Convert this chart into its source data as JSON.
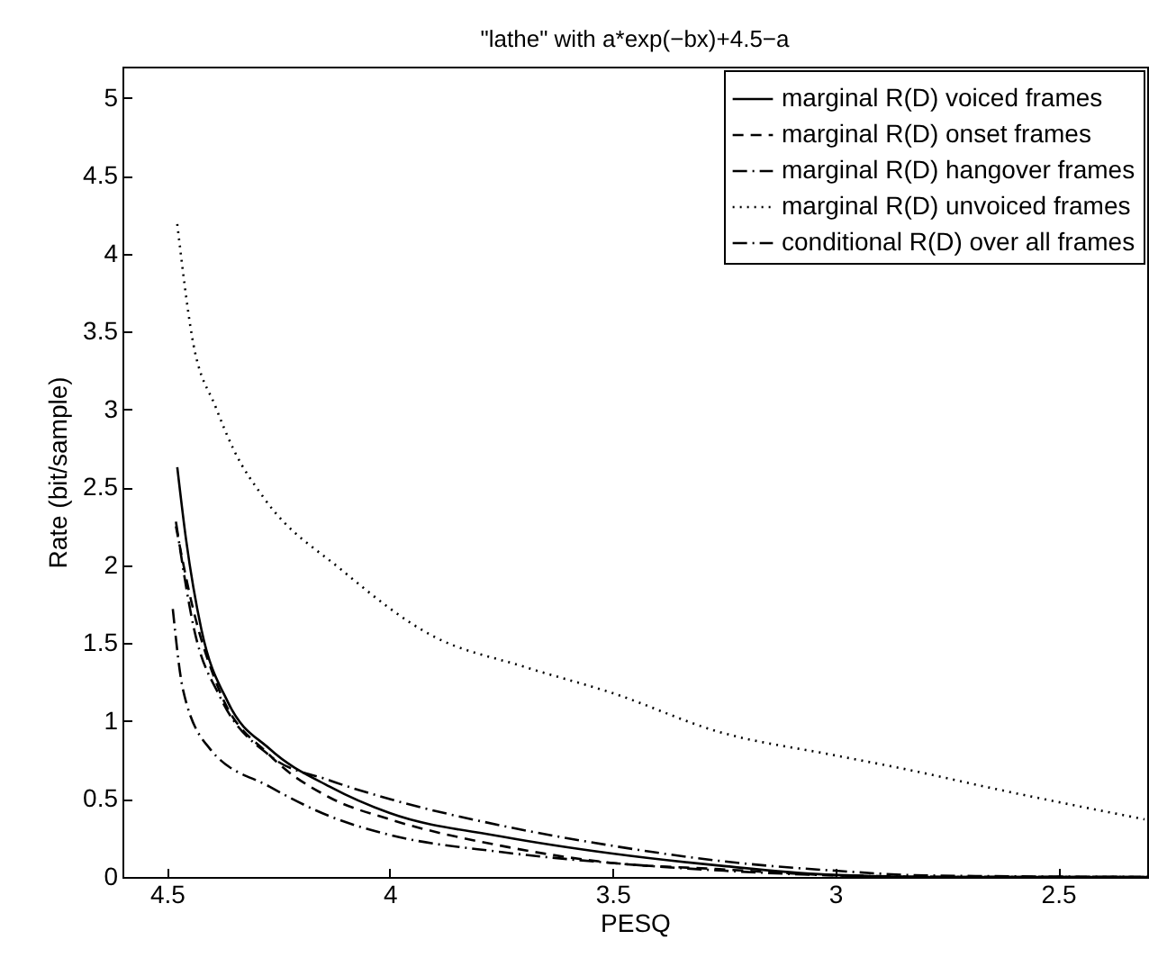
{
  "chart_data": {
    "type": "line",
    "title": "\"lathe\" with a*exp(−bx)+4.5−a",
    "xlabel": "PESQ",
    "ylabel": "Rate (bit/sample)",
    "xlim": [
      4.6,
      2.3
    ],
    "xticks": [
      4.5,
      4,
      3.5,
      3,
      2.5
    ],
    "ylim": [
      0,
      5.2
    ],
    "yticks": [
      0,
      0.5,
      1,
      1.5,
      2,
      2.5,
      3,
      3.5,
      4,
      4.5,
      5
    ],
    "grid": false,
    "legend": "top right",
    "marker": "none",
    "series": [
      {
        "name": "marginal R(D) voiced frames",
        "color": "#000000",
        "line_style": "solid",
        "x": [
          4.477,
          4.457,
          4.423,
          4.363,
          4.269,
          4.135,
          4.0,
          3.75,
          3.5,
          3.25,
          3.02,
          2.8,
          2.3
        ],
        "values": [
          2.63,
          2.16,
          1.59,
          1.12,
          0.82,
          0.58,
          0.41,
          0.26,
          0.15,
          0.07,
          0.015,
          0.0,
          0.0
        ]
      },
      {
        "name": "marginal R(D) onset frames",
        "color": "#000000",
        "line_style": "dashed",
        "x": [
          4.48,
          4.444,
          4.383,
          4.269,
          4.135,
          4.0,
          3.75,
          3.5,
          3.26,
          3.0,
          2.8,
          2.3
        ],
        "values": [
          2.25,
          1.75,
          1.2,
          0.78,
          0.51,
          0.37,
          0.2,
          0.09,
          0.05,
          0.01,
          0.0,
          0.0
        ]
      },
      {
        "name": "marginal R(D) hangover frames",
        "color": "#000000",
        "line_style": "dashdot",
        "x": [
          4.48,
          4.44,
          4.38,
          4.27,
          4.135,
          4.0,
          3.75,
          3.5,
          3.25,
          3.0,
          2.8,
          2.3
        ],
        "values": [
          2.28,
          1.6,
          1.15,
          0.78,
          0.62,
          0.5,
          0.33,
          0.2,
          0.1,
          0.04,
          0.01,
          0.0
        ]
      },
      {
        "name": "marginal R(D) unvoiced frames",
        "color": "#000000",
        "line_style": "dotted",
        "x": [
          4.477,
          4.444,
          4.39,
          4.35,
          4.282,
          4.108,
          3.906,
          3.7,
          3.5,
          3.26,
          3.0,
          2.857,
          2.6,
          2.306
        ],
        "values": [
          4.19,
          3.47,
          3.01,
          2.74,
          2.43,
          1.97,
          1.55,
          1.35,
          1.18,
          0.93,
          0.78,
          0.7,
          0.54,
          0.37
        ]
      },
      {
        "name": "conditional R(D) over all frames",
        "color": "#000000",
        "line_style": "dashdot",
        "x": [
          4.487,
          4.464,
          4.403,
          4.27,
          4.135,
          4.0,
          3.75,
          3.503,
          3.25,
          3.0,
          2.7,
          2.3
        ],
        "values": [
          1.72,
          1.2,
          0.82,
          0.58,
          0.39,
          0.27,
          0.16,
          0.09,
          0.04,
          0.01,
          0.0,
          0.0
        ]
      }
    ]
  }
}
